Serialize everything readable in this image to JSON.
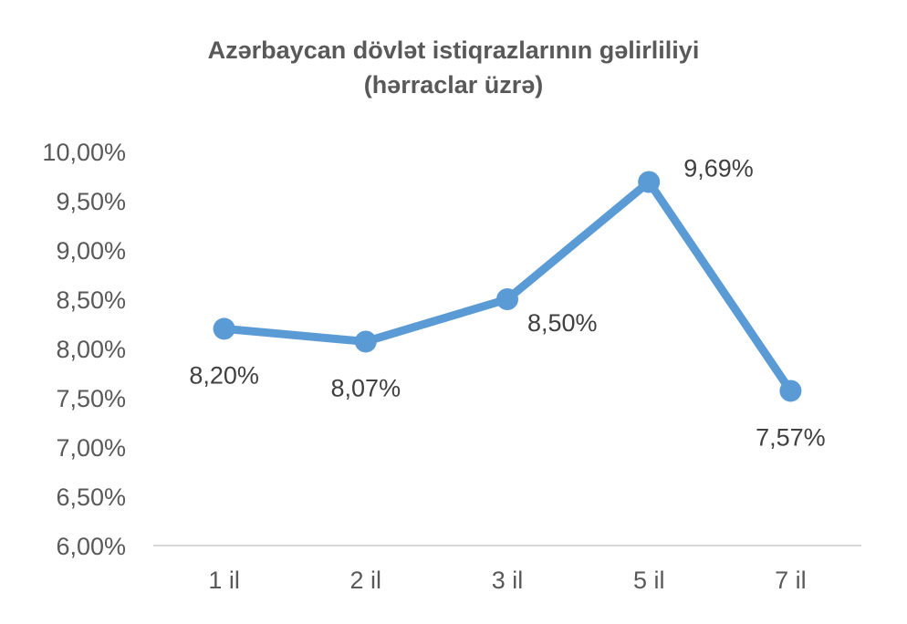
{
  "chart_data": {
    "type": "line",
    "title": [
      "Azərbaycan dövlət istiqrazlarının gəlirliliyi",
      "(hərraclar üzrə)"
    ],
    "categories": [
      "1 il",
      "2 il",
      "3 il",
      "5 il",
      "7 il"
    ],
    "series": [
      {
        "values": [
          8.2,
          8.07,
          8.5,
          9.69,
          7.57
        ],
        "labels": [
          "8,20%",
          "8,07%",
          "8,50%",
          "9,69%",
          "7,57%"
        ],
        "color": "#5b9bd5"
      }
    ],
    "ylim": [
      6.0,
      10.0
    ],
    "ystep": 0.5,
    "yticks": [
      "6,00%",
      "6,50%",
      "7,00%",
      "7,50%",
      "8,00%",
      "8,50%",
      "9,00%",
      "9,50%",
      "10,00%"
    ],
    "label_positions": [
      "below",
      "below",
      "below-right",
      "right",
      "below"
    ],
    "grid": false,
    "legend": "none",
    "xlabel": "",
    "ylabel": ""
  }
}
